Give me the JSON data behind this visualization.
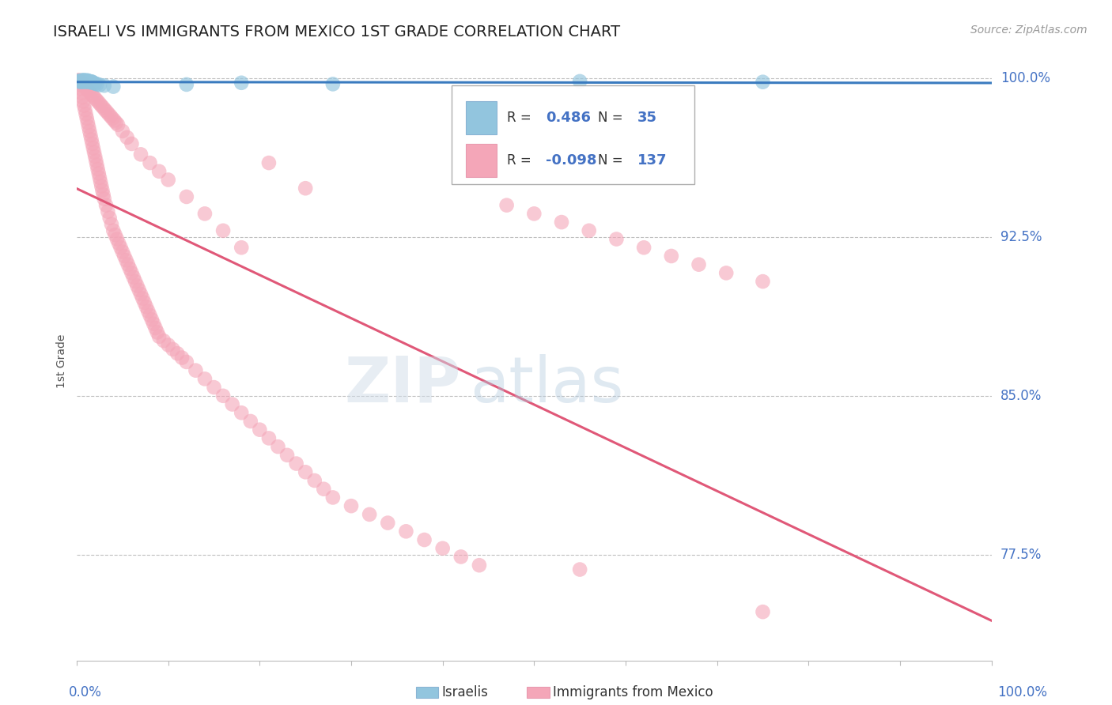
{
  "title": "ISRAELI VS IMMIGRANTS FROM MEXICO 1ST GRADE CORRELATION CHART",
  "source": "Source: ZipAtlas.com",
  "ylabel": "1st Grade",
  "ytick_labels": [
    "100.0%",
    "92.5%",
    "85.0%",
    "77.5%"
  ],
  "ytick_values": [
    1.0,
    0.925,
    0.85,
    0.775
  ],
  "legend_label1": "Israelis",
  "legend_label2": "Immigrants from Mexico",
  "R1": 0.486,
  "N1": 35,
  "R2": -0.098,
  "N2": 137,
  "color_blue": "#92c5de",
  "color_pink": "#f4a6b8",
  "color_blue_line": "#3a7bbf",
  "color_pink_line": "#e05878",
  "color_title": "#222222",
  "color_axis_labels": "#4472c4",
  "color_source": "#999999",
  "watermark_zip": "ZIP",
  "watermark_atlas": "atlas",
  "israelis_x": [
    0.002,
    0.003,
    0.004,
    0.005,
    0.006,
    0.006,
    0.007,
    0.007,
    0.007,
    0.008,
    0.008,
    0.009,
    0.009,
    0.01,
    0.01,
    0.011,
    0.011,
    0.012,
    0.012,
    0.013,
    0.014,
    0.015,
    0.016,
    0.017,
    0.018,
    0.02,
    0.022,
    0.025,
    0.03,
    0.04,
    0.12,
    0.18,
    0.28,
    0.55,
    0.75
  ],
  "israelis_y": [
    0.9985,
    0.9988,
    0.9982,
    0.9986,
    0.9983,
    0.999,
    0.9987,
    0.9989,
    0.9984,
    0.9985,
    0.999,
    0.9983,
    0.9988,
    0.9986,
    0.9984,
    0.999,
    0.9985,
    0.9987,
    0.9983,
    0.9986,
    0.9985,
    0.998,
    0.9984,
    0.9982,
    0.9978,
    0.9975,
    0.9972,
    0.9968,
    0.9965,
    0.996,
    0.997,
    0.9978,
    0.9972,
    0.9985,
    0.9982
  ],
  "mexico_x": [
    0.001,
    0.002,
    0.003,
    0.004,
    0.005,
    0.006,
    0.007,
    0.008,
    0.009,
    0.01,
    0.011,
    0.012,
    0.013,
    0.014,
    0.015,
    0.016,
    0.017,
    0.018,
    0.019,
    0.02,
    0.021,
    0.022,
    0.023,
    0.024,
    0.025,
    0.026,
    0.027,
    0.028,
    0.029,
    0.03,
    0.032,
    0.034,
    0.036,
    0.038,
    0.04,
    0.042,
    0.044,
    0.046,
    0.048,
    0.05,
    0.052,
    0.054,
    0.056,
    0.058,
    0.06,
    0.062,
    0.064,
    0.066,
    0.068,
    0.07,
    0.072,
    0.074,
    0.076,
    0.078,
    0.08,
    0.082,
    0.084,
    0.086,
    0.088,
    0.09,
    0.095,
    0.1,
    0.105,
    0.11,
    0.115,
    0.12,
    0.13,
    0.14,
    0.15,
    0.16,
    0.17,
    0.18,
    0.19,
    0.2,
    0.21,
    0.22,
    0.23,
    0.24,
    0.25,
    0.26,
    0.27,
    0.28,
    0.3,
    0.32,
    0.34,
    0.36,
    0.38,
    0.4,
    0.42,
    0.44,
    0.47,
    0.5,
    0.53,
    0.56,
    0.59,
    0.62,
    0.65,
    0.68,
    0.71,
    0.75,
    0.003,
    0.005,
    0.007,
    0.009,
    0.011,
    0.013,
    0.015,
    0.017,
    0.019,
    0.021,
    0.023,
    0.025,
    0.027,
    0.029,
    0.031,
    0.033,
    0.035,
    0.037,
    0.039,
    0.041,
    0.043,
    0.045,
    0.05,
    0.055,
    0.06,
    0.07,
    0.08,
    0.09,
    0.1,
    0.12,
    0.14,
    0.16,
    0.18,
    0.21,
    0.25,
    0.55,
    0.75
  ],
  "mexico_y": [
    0.999,
    0.9985,
    0.997,
    0.995,
    0.993,
    0.991,
    0.989,
    0.987,
    0.985,
    0.983,
    0.981,
    0.979,
    0.977,
    0.975,
    0.973,
    0.971,
    0.969,
    0.967,
    0.965,
    0.963,
    0.961,
    0.959,
    0.957,
    0.955,
    0.953,
    0.951,
    0.949,
    0.947,
    0.945,
    0.943,
    0.94,
    0.937,
    0.934,
    0.931,
    0.928,
    0.926,
    0.924,
    0.922,
    0.92,
    0.918,
    0.916,
    0.914,
    0.912,
    0.91,
    0.908,
    0.906,
    0.904,
    0.902,
    0.9,
    0.898,
    0.896,
    0.894,
    0.892,
    0.89,
    0.888,
    0.886,
    0.884,
    0.882,
    0.88,
    0.878,
    0.876,
    0.874,
    0.872,
    0.87,
    0.868,
    0.866,
    0.862,
    0.858,
    0.854,
    0.85,
    0.846,
    0.842,
    0.838,
    0.834,
    0.83,
    0.826,
    0.822,
    0.818,
    0.814,
    0.81,
    0.806,
    0.802,
    0.798,
    0.794,
    0.79,
    0.786,
    0.782,
    0.778,
    0.774,
    0.77,
    0.94,
    0.936,
    0.932,
    0.928,
    0.924,
    0.92,
    0.916,
    0.912,
    0.908,
    0.904,
    0.999,
    0.998,
    0.997,
    0.996,
    0.995,
    0.994,
    0.993,
    0.992,
    0.991,
    0.99,
    0.989,
    0.988,
    0.987,
    0.986,
    0.985,
    0.984,
    0.983,
    0.982,
    0.981,
    0.98,
    0.979,
    0.978,
    0.975,
    0.972,
    0.969,
    0.964,
    0.96,
    0.956,
    0.952,
    0.944,
    0.936,
    0.928,
    0.92,
    0.96,
    0.948,
    0.768,
    0.748
  ]
}
